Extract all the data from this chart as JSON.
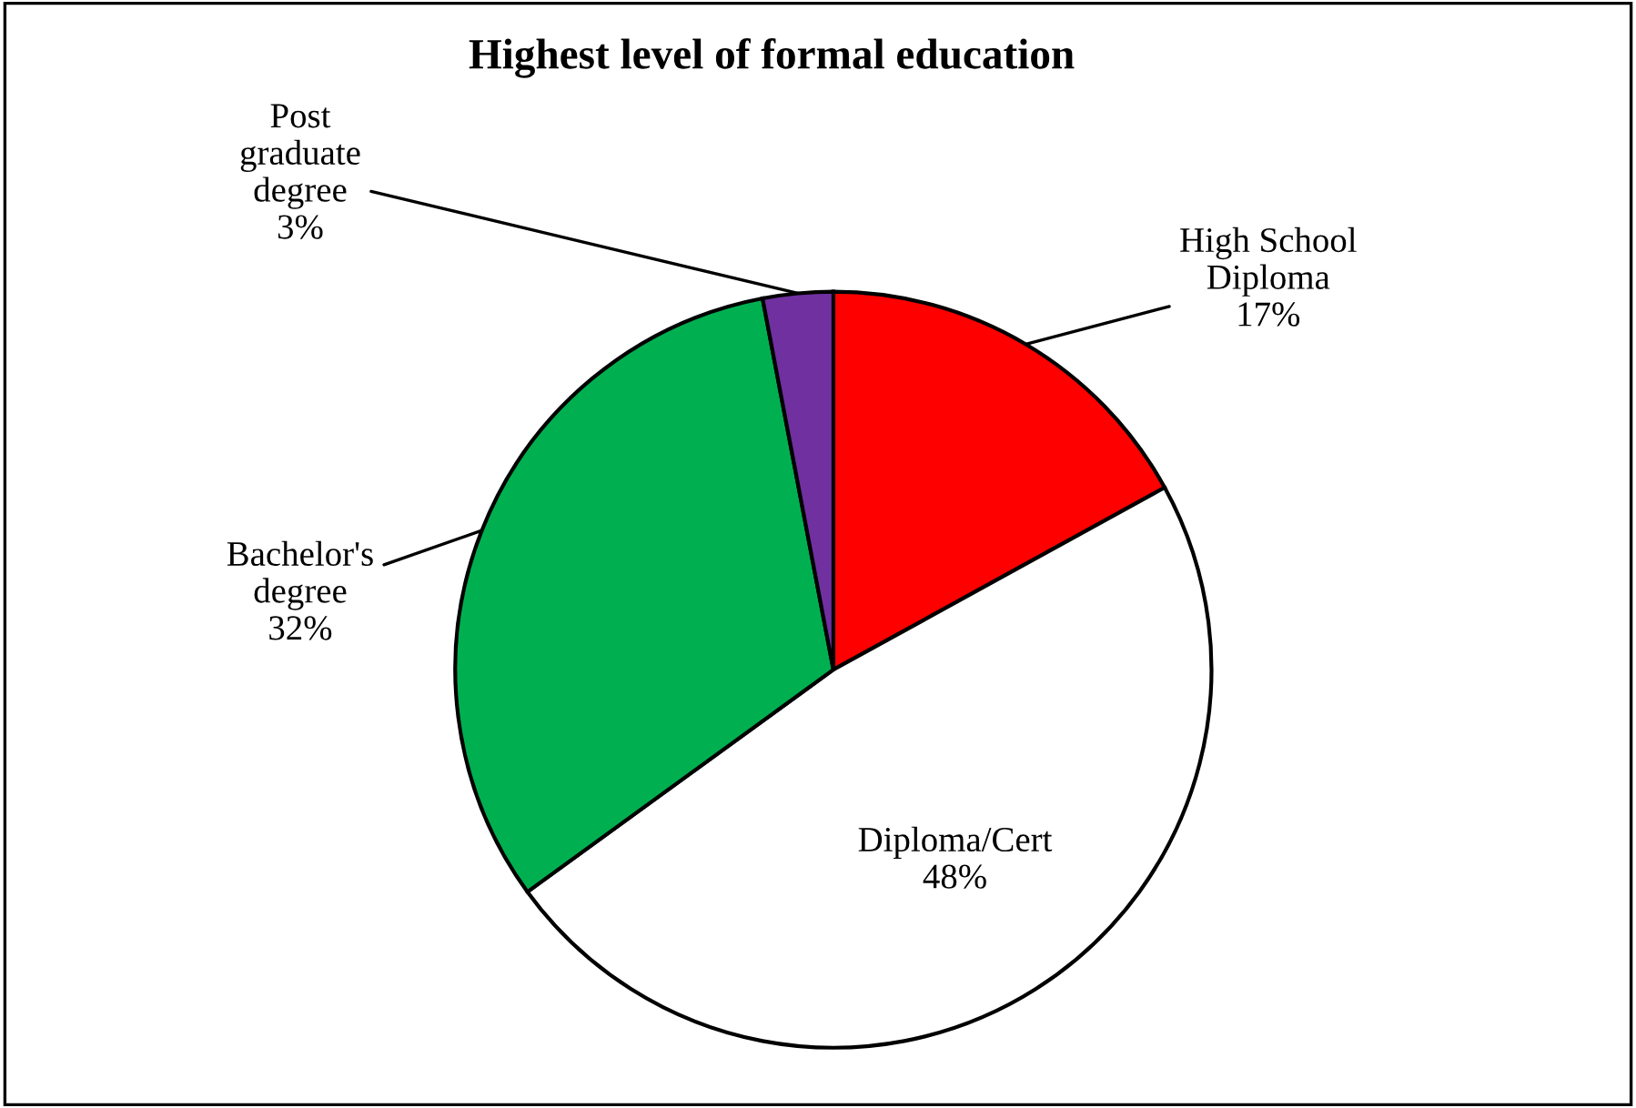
{
  "chart_data": {
    "type": "pie",
    "title": "Highest level of formal education",
    "categories": [
      "High School\nDiploma",
      "Diploma/Cert",
      "Bachelor's\ndegree",
      "Post\ngraduate\ndegree"
    ],
    "values": [
      17,
      48,
      32,
      3
    ],
    "colors": [
      "#ff0000",
      "#ffffff",
      "#00b050",
      "#7030a0"
    ],
    "value_labels": [
      "17%",
      "48%",
      "32%",
      "3%"
    ],
    "legend": false
  }
}
